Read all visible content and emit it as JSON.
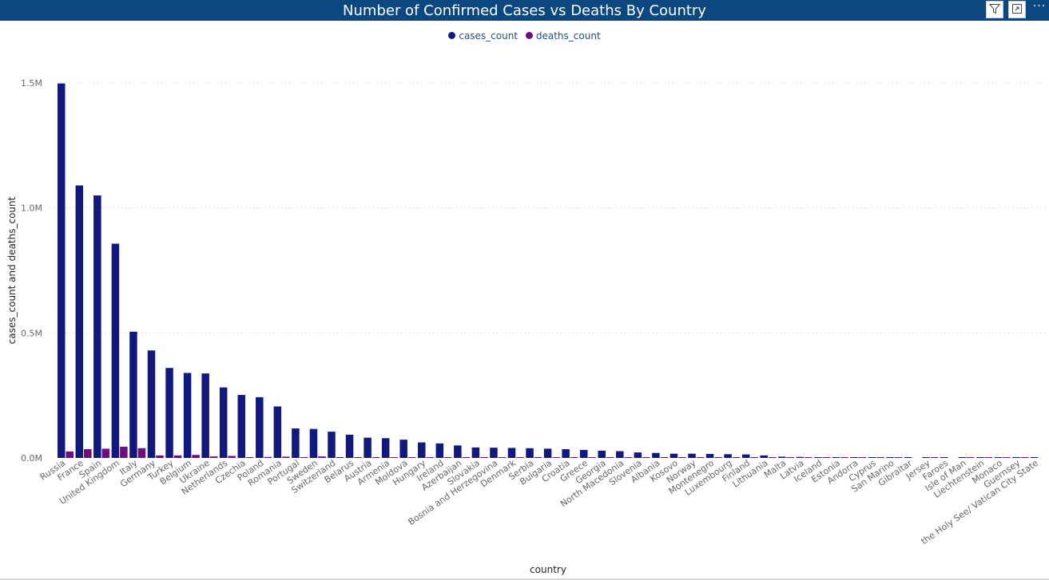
{
  "header": {
    "title": "Number of Confirmed Cases vs Deaths By Country",
    "filter_icon": "filter-icon",
    "focus_icon": "focus-mode-icon",
    "more_label": "···"
  },
  "chart_data": {
    "type": "bar",
    "title": "Number of Confirmed Cases vs Deaths By Country",
    "xlabel": "country",
    "ylabel": "cases_count and deaths_count",
    "ylim": [
      0,
      1500000
    ],
    "yticks": [
      {
        "value": 0,
        "label": "0.0M"
      },
      {
        "value": 500000,
        "label": "0.5M"
      },
      {
        "value": 1000000,
        "label": "1.0M"
      },
      {
        "value": 1500000,
        "label": "1.5M"
      }
    ],
    "grid": true,
    "legend_position": "top-center",
    "categories": [
      "Russia",
      "France",
      "Spain",
      "United Kingdom",
      "Italy",
      "Germany",
      "Turkey",
      "Belgium",
      "Ukraine",
      "Netherlands",
      "Czechia",
      "Poland",
      "Romania",
      "Portugal",
      "Sweden",
      "Switzerland",
      "Belarus",
      "Austria",
      "Armenia",
      "Moldova",
      "Hungary",
      "Ireland",
      "Azerbaijan",
      "Slovakia",
      "Bosnia and Herzegovina",
      "Denmark",
      "Serbia",
      "Bulgaria",
      "Croatia",
      "Greece",
      "Georgia",
      "North Macedonia",
      "Slovenia",
      "Albania",
      "Kosovo",
      "Norway",
      "Montenegro",
      "Luxembourg",
      "Finland",
      "Lithuania",
      "Malta",
      "Latvia",
      "Iceland",
      "Estonia",
      "Andorra",
      "Cyprus",
      "San Marino",
      "Gibraltar",
      "Jersey",
      "Faroes",
      "Isle of Man",
      "Liechtenstein",
      "Monaco",
      "Guernsey",
      "the Holy See/ Vatican City State"
    ],
    "series": [
      {
        "name": "cases_count",
        "color": "#12197e",
        "values": [
          1498000,
          1090000,
          1050000,
          857000,
          505000,
          430000,
          360000,
          340000,
          338000,
          282000,
          252000,
          243000,
          206000,
          118000,
          116000,
          105000,
          93000,
          81000,
          79000,
          73000,
          62000,
          58000,
          50000,
          42000,
          41000,
          40000,
          39000,
          37000,
          35000,
          32000,
          29000,
          27000,
          22000,
          20000,
          17000,
          17000,
          16000,
          15000,
          14000,
          10000,
          5000,
          4000,
          3000,
          3000,
          2000,
          2000,
          1500,
          1000,
          500,
          500,
          500,
          200,
          200,
          100,
          50
        ]
      },
      {
        "name": "deaths_count",
        "color": "#6c0f7c",
        "values": [
          26000,
          35000,
          37000,
          45000,
          39000,
          10000,
          10000,
          12000,
          6000,
          8000,
          2000,
          4000,
          5000,
          2000,
          6000,
          2500,
          700,
          1200,
          1300,
          1700,
          2000,
          2000,
          600,
          200,
          1000,
          700,
          800,
          1200,
          700,
          500,
          250,
          800,
          500,
          500,
          500,
          300,
          300,
          200,
          400,
          200,
          100,
          100,
          30,
          70,
          50,
          30,
          40,
          0,
          30,
          0,
          25,
          10,
          5,
          1,
          0
        ]
      }
    ]
  }
}
